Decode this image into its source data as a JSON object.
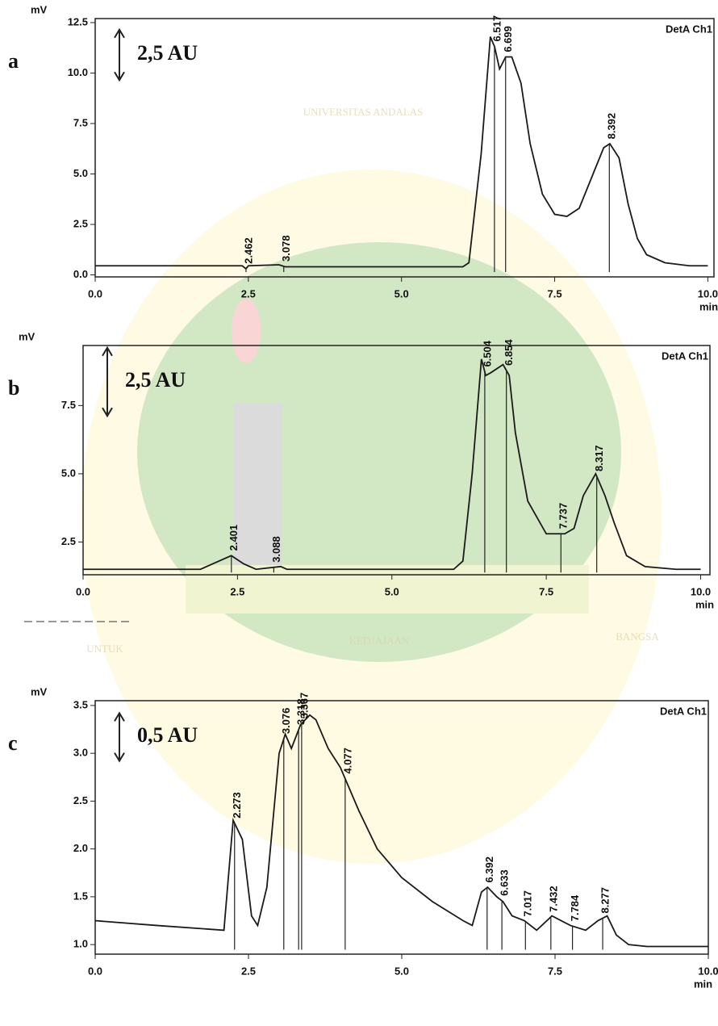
{
  "chart_data": [
    {
      "type": "line",
      "panel": "a",
      "y_label": "mV",
      "x_label": "min",
      "scale_bar": {
        "label": "2,5 AU",
        "value": 2.5
      },
      "x": [
        0,
        2.4,
        2.46,
        2.5,
        3.0,
        3.1,
        6.0,
        6.1,
        6.3,
        6.45,
        6.52,
        6.6,
        6.7,
        6.8,
        6.95,
        7.1,
        7.3,
        7.5,
        7.7,
        7.9,
        8.1,
        8.3,
        8.4,
        8.55,
        8.7,
        8.85,
        9.0,
        9.3,
        9.7,
        10.0
      ],
      "series": [
        {
          "name": "DetA Ch1",
          "color": "#1a1a1a",
          "values": [
            0.45,
            0.45,
            0.3,
            0.45,
            0.5,
            0.4,
            0.4,
            0.6,
            6,
            11.8,
            11.3,
            10.2,
            10.8,
            10.8,
            9.5,
            6.5,
            4.0,
            3.0,
            2.9,
            3.3,
            4.8,
            6.3,
            6.5,
            5.8,
            3.5,
            1.8,
            1.0,
            0.6,
            0.45,
            0.45
          ]
        }
      ],
      "peak_times": [
        2.462,
        3.078,
        6.517,
        6.699,
        8.392
      ],
      "xlim": [
        0,
        10.1
      ],
      "ylim": [
        -0.1,
        12.7
      ],
      "xticks": [
        {
          "value": 0,
          "label": "0.0"
        },
        2.5,
        {
          "value": 5,
          "label": "5.0"
        },
        7.5,
        {
          "value": 10,
          "label": "10.0"
        }
      ],
      "yticks": [
        {
          "value": 0,
          "label": "0.0"
        },
        2.5,
        {
          "value": 5,
          "label": "5.0"
        },
        7.5,
        {
          "value": 10,
          "label": "10.0"
        },
        12.5
      ]
    },
    {
      "type": "line",
      "panel": "b",
      "y_label": "mV",
      "x_label": "min",
      "scale_bar": {
        "label": "2,5 AU",
        "value": 2.5
      },
      "x": [
        0,
        1.9,
        2.1,
        2.4,
        2.6,
        2.8,
        3.2,
        3.3,
        6.0,
        6.15,
        6.3,
        6.45,
        6.52,
        6.6,
        6.8,
        6.9,
        7.0,
        7.2,
        7.5,
        7.8,
        7.95,
        8.1,
        8.3,
        8.45,
        8.6,
        8.8,
        9.1,
        9.6,
        10.0
      ],
      "series": [
        {
          "name": "DetA Ch1",
          "color": "#1a1a1a",
          "values": [
            1.5,
            1.5,
            1.7,
            2.0,
            1.7,
            1.5,
            1.6,
            1.5,
            1.5,
            1.8,
            5,
            9.2,
            8.6,
            8.7,
            9.0,
            8.6,
            6.5,
            4.0,
            2.8,
            2.8,
            3.0,
            4.2,
            5.0,
            4.2,
            3.2,
            2.0,
            1.6,
            1.5,
            1.5
          ]
        }
      ],
      "peak_times": [
        2.401,
        3.088,
        6.504,
        6.854,
        7.737,
        8.317
      ],
      "xlim": [
        0,
        10.15
      ],
      "ylim": [
        1.3,
        9.7
      ],
      "xticks": [
        {
          "value": 0,
          "label": "0.0"
        },
        2.5,
        {
          "value": 5,
          "label": "5.0"
        },
        7.5,
        {
          "value": 10,
          "label": "10.0"
        }
      ],
      "yticks": [
        2.5,
        {
          "value": 5,
          "label": "5.0"
        },
        7.5
      ]
    },
    {
      "type": "line",
      "panel": "c",
      "y_label": "mV",
      "x_label": "min",
      "scale_bar": {
        "label": "0,5 AU",
        "value": 0.5
      },
      "x": [
        0,
        1.0,
        2.1,
        2.25,
        2.4,
        2.55,
        2.65,
        2.8,
        3.0,
        3.1,
        3.2,
        3.35,
        3.5,
        3.6,
        3.8,
        4.0,
        4.1,
        4.3,
        4.6,
        5.0,
        5.5,
        6.0,
        6.15,
        6.3,
        6.4,
        6.55,
        6.65,
        6.8,
        7.0,
        7.2,
        7.45,
        7.6,
        7.75,
        8.0,
        8.2,
        8.35,
        8.5,
        8.7,
        9.0,
        10.0
      ],
      "series": [
        {
          "name": "DetA Ch1",
          "color": "#1a1a1a",
          "values": [
            1.25,
            1.2,
            1.15,
            2.3,
            2.1,
            1.3,
            1.2,
            1.6,
            3.0,
            3.2,
            3.05,
            3.3,
            3.4,
            3.35,
            3.05,
            2.85,
            2.7,
            2.4,
            2.0,
            1.7,
            1.45,
            1.25,
            1.2,
            1.55,
            1.6,
            1.5,
            1.45,
            1.3,
            1.25,
            1.15,
            1.3,
            1.25,
            1.2,
            1.15,
            1.25,
            1.3,
            1.1,
            1.0,
            0.98,
            0.98
          ]
        }
      ],
      "peak_times": [
        2.273,
        3.076,
        3.318,
        3.367,
        4.077,
        6.392,
        6.633,
        7.017,
        7.432,
        7.784,
        8.277
      ],
      "xlim": [
        0,
        10
      ],
      "ylim": [
        0.9,
        3.55
      ],
      "xticks": [
        {
          "value": 0,
          "label": "0.0"
        },
        2.5,
        {
          "value": 5,
          "label": "5.0"
        },
        7.5,
        {
          "value": 10,
          "label": "10.0"
        }
      ],
      "yticks": [
        {
          "value": 1,
          "label": "1.0"
        },
        1.5,
        {
          "value": 2,
          "label": "2.0"
        },
        2.5,
        {
          "value": 3,
          "label": "3.0"
        },
        3.5
      ]
    }
  ],
  "watermark": [
    "UNIVERSITAS ANDALAS",
    "UNTUK",
    "KEDJAJAAN",
    "BANGSA"
  ]
}
